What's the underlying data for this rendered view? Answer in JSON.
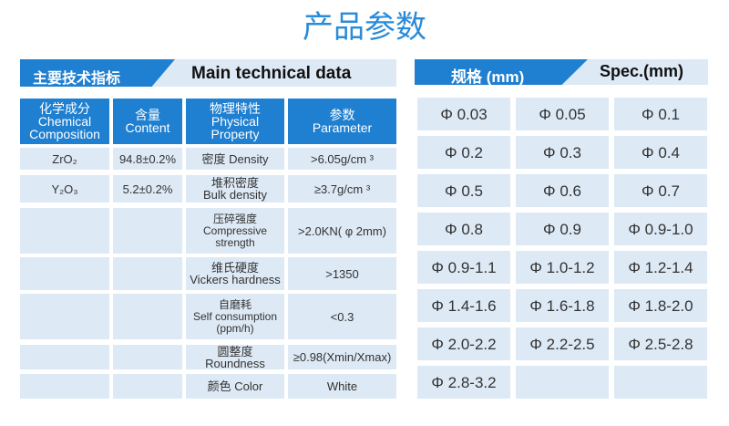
{
  "title": "产品参数",
  "left": {
    "header_cn": "主要技术指标",
    "header_en": "Main technical data",
    "columns": [
      [
        "化学成分",
        "Chemical",
        "Composition"
      ],
      [
        "含量",
        "Content"
      ],
      [
        "物理特性",
        "Physical",
        "Property"
      ],
      [
        "参数",
        "Parameter"
      ]
    ],
    "rows": [
      [
        [
          "ZrO₂"
        ],
        [
          "94.8±0.2%"
        ],
        [
          "密度 Density"
        ],
        [
          ">6.05g/cm ³"
        ]
      ],
      [
        [
          "Y₂O₃"
        ],
        [
          "5.2±0.2%"
        ],
        [
          "堆积密度",
          "Bulk density"
        ],
        [
          "≥3.7g/cm ³"
        ]
      ],
      [
        [],
        [],
        [
          "压碎强度",
          "Compressive",
          "strength"
        ],
        [
          ">2.0KN( φ 2mm)"
        ]
      ],
      [
        [],
        [],
        [
          "维氏硬度",
          "Vickers hardness"
        ],
        [
          ">1350"
        ]
      ],
      [
        [],
        [],
        [
          "自磨耗",
          "Self consumption",
          "(ppm/h)"
        ],
        [
          "<0.3"
        ]
      ],
      [
        [],
        [],
        [
          "圆整度 Roundness"
        ],
        [
          "≥0.98(Xmin/Xmax)"
        ]
      ],
      [
        [],
        [],
        [
          "颜色 Color"
        ],
        [
          "White"
        ]
      ]
    ]
  },
  "right": {
    "header_cn": "规格 (mm)",
    "header_en": "Spec.(mm)",
    "cells": [
      "Φ 0.03",
      "Φ 0.05",
      "Φ 0.1",
      "Φ 0.2",
      "Φ 0.3",
      "Φ 0.4",
      "Φ 0.5",
      "Φ 0.6",
      "Φ 0.7",
      "Φ 0.8",
      "Φ 0.9",
      "Φ 0.9-1.0",
      "Φ 0.9-1.1",
      "Φ 1.0-1.2",
      "Φ 1.2-1.4",
      "Φ 1.4-1.6",
      "Φ 1.6-1.8",
      "Φ 1.8-2.0",
      "Φ 2.0-2.2",
      "Φ 2.2-2.5",
      "Φ 2.5-2.8",
      "Φ 2.8-3.2"
    ]
  }
}
